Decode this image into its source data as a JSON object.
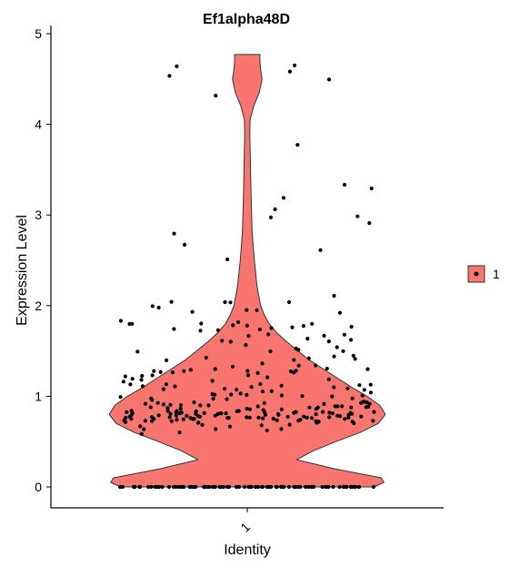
{
  "chart_data": {
    "type": "violin",
    "title": "Ef1alpha48D",
    "xlabel": "Identity",
    "ylabel": "Expression Level",
    "categories": [
      "1"
    ],
    "ylim": [
      0,
      5
    ],
    "y_ticks": [
      "0",
      "1",
      "2",
      "3",
      "4",
      "5"
    ],
    "legend": {
      "entries": [
        "1"
      ],
      "position": "right"
    },
    "fill_color": "#F8766D",
    "grid": false,
    "violin_density": [
      [
        0.0,
        0.9
      ],
      [
        0.05,
        0.97
      ],
      [
        0.1,
        0.95
      ],
      [
        0.2,
        0.62
      ],
      [
        0.3,
        0.35
      ],
      [
        0.4,
        0.47
      ],
      [
        0.5,
        0.63
      ],
      [
        0.6,
        0.8
      ],
      [
        0.7,
        0.93
      ],
      [
        0.8,
        0.98
      ],
      [
        0.9,
        0.94
      ],
      [
        1.0,
        0.85
      ],
      [
        1.1,
        0.74
      ],
      [
        1.2,
        0.64
      ],
      [
        1.3,
        0.54
      ],
      [
        1.4,
        0.44
      ],
      [
        1.5,
        0.36
      ],
      [
        1.6,
        0.28
      ],
      [
        1.7,
        0.21
      ],
      [
        1.8,
        0.155
      ],
      [
        1.9,
        0.12
      ],
      [
        2.0,
        0.095
      ],
      [
        2.2,
        0.07
      ],
      [
        2.5,
        0.05
      ],
      [
        2.8,
        0.035
      ],
      [
        3.2,
        0.027
      ],
      [
        3.6,
        0.022
      ],
      [
        3.9,
        0.018
      ],
      [
        4.05,
        0.02
      ],
      [
        4.2,
        0.045
      ],
      [
        4.35,
        0.085
      ],
      [
        4.5,
        0.105
      ],
      [
        4.6,
        0.095
      ],
      [
        4.7,
        0.09
      ],
      [
        4.77,
        0.09
      ]
    ]
  }
}
